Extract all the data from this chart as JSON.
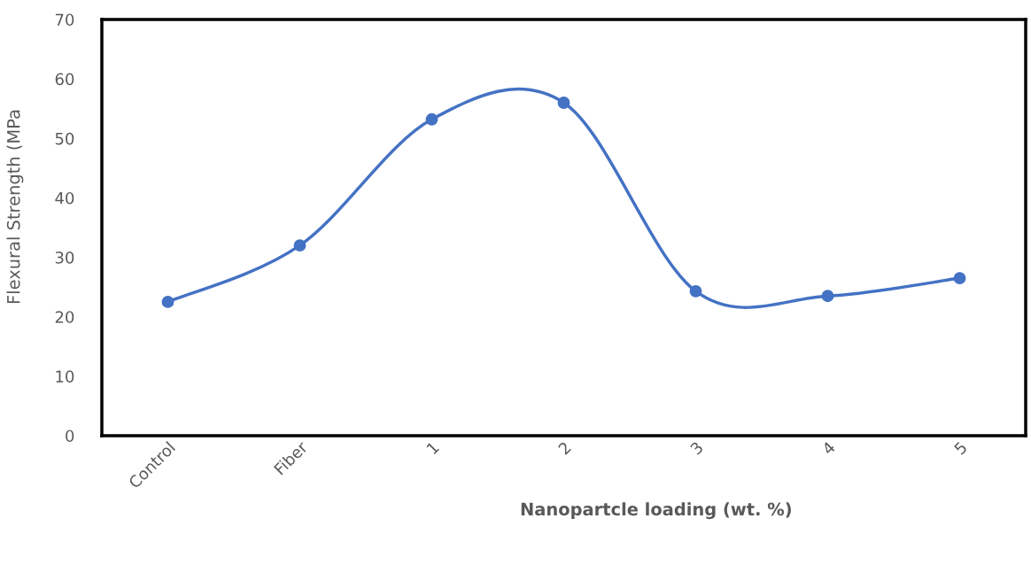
{
  "chart_data": {
    "type": "line",
    "xlabel": "Nanopartcle loading (wt. %)",
    "ylabel": "Flexural Strength (MPa",
    "categories": [
      "Control",
      "Fiber",
      "1",
      "2",
      "3",
      "4",
      "5"
    ],
    "series": [
      {
        "color": "#4472c4",
        "values": [
          22.5,
          32,
          53.2,
          56,
          24.3,
          23.5,
          26.5
        ]
      }
    ],
    "ylim": [
      0,
      70
    ],
    "yticks": [
      0,
      10,
      20,
      30,
      40,
      50,
      60,
      70
    ],
    "grid": false,
    "legend": false,
    "marker": "circle",
    "line_style": "solid"
  }
}
